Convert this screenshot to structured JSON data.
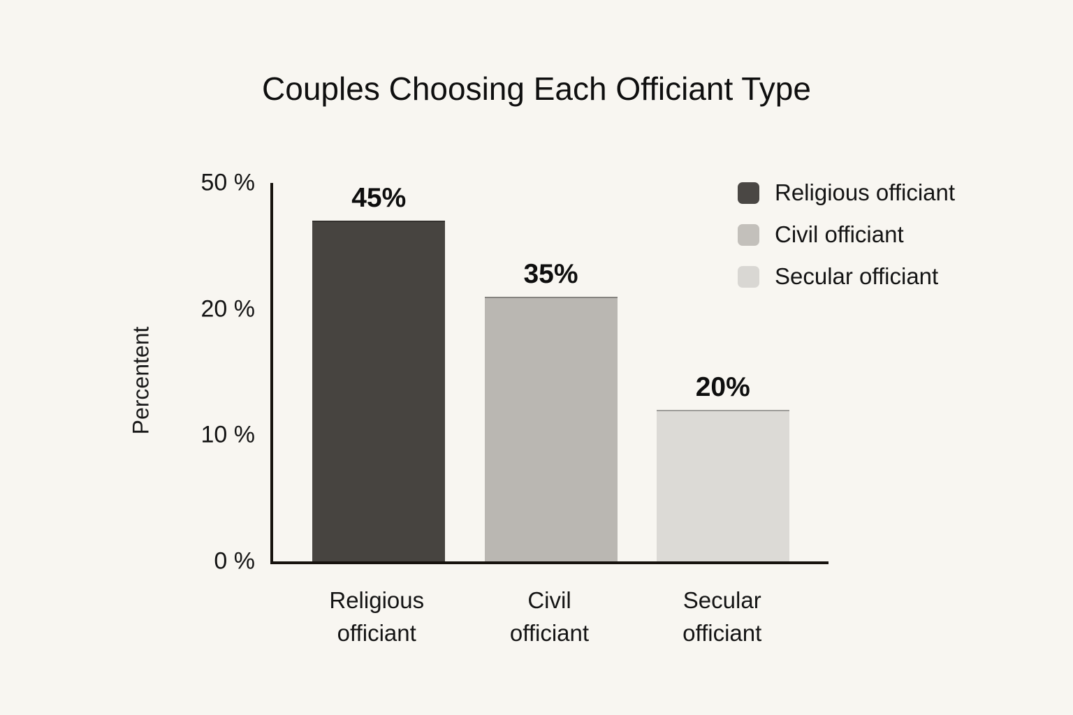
{
  "title": "Couples Choosing Each Officiant Type",
  "chart_data": {
    "type": "bar",
    "title": "Couples Choosing Each Officiant Type",
    "xlabel": "",
    "ylabel": "Percentent",
    "ylim": [
      0,
      50
    ],
    "grid": false,
    "legend_position": "top-right",
    "yticks": [
      {
        "label": "50 %",
        "value": 50
      },
      {
        "label": "20 %",
        "value": 20
      },
      {
        "label": "10 %",
        "value": 10
      },
      {
        "label": "0 %",
        "value": 0
      }
    ],
    "ticks_evenly_spaced": true,
    "categories": [
      "Religious officiant",
      "Civil officiant",
      "Secular officiant"
    ],
    "series": [
      {
        "category": "Religious officiant",
        "category_lines": [
          "Religious",
          "officiant"
        ],
        "value": 45,
        "value_label": "45%",
        "color": "#474440"
      },
      {
        "category": "Civil officiant",
        "category_lines": [
          "Civil",
          "officiant"
        ],
        "value": 35,
        "value_label": "35%",
        "color": "#bab7b2"
      },
      {
        "category": "Secular officiant",
        "category_lines": [
          "Secular",
          "officiant"
        ],
        "value": 20,
        "value_label": "20%",
        "color": "#dcdad6"
      }
    ],
    "legend": [
      {
        "label": "Religious officiant",
        "color": "#4a4744"
      },
      {
        "label": "Civil officiant",
        "color": "#c3c0bb"
      },
      {
        "label": "Secular officiant",
        "color": "#d9d7d3"
      }
    ]
  },
  "colors": {
    "background": "#f8f6f1",
    "axis": "#17130e",
    "text": "#141414"
  }
}
